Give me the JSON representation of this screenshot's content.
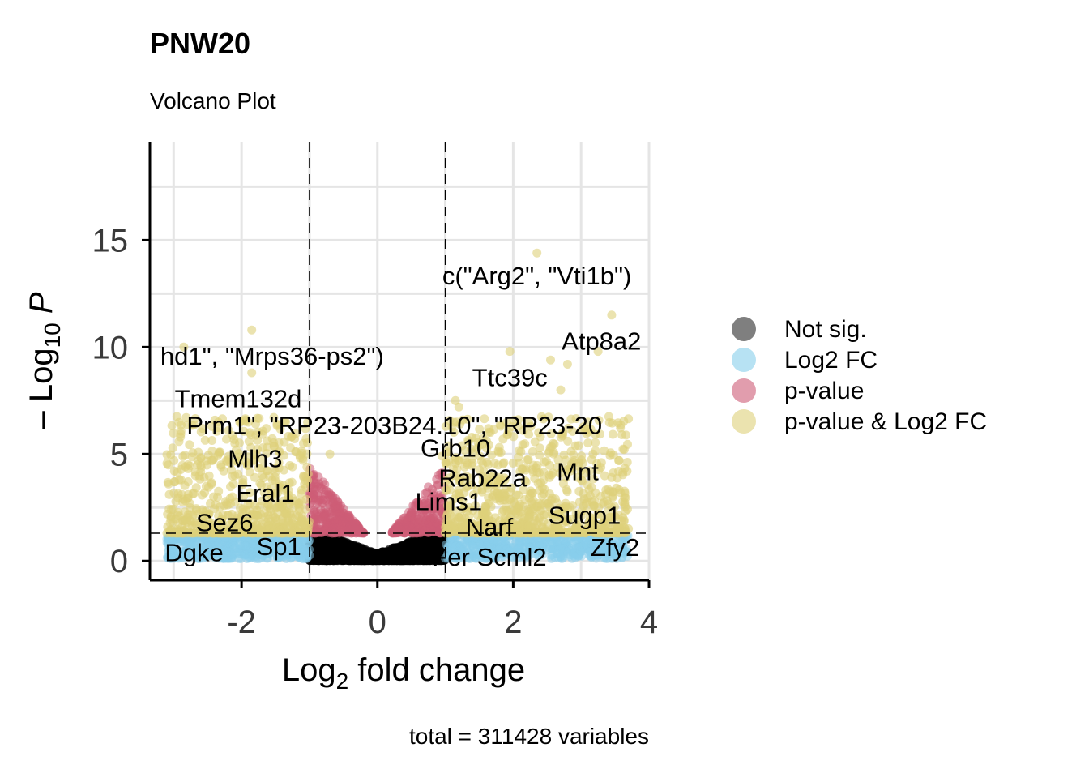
{
  "chart_data": {
    "type": "scatter",
    "title": "PNW20",
    "subtitle": "Volcano Plot",
    "xlabel": "Log2 fold change",
    "ylabel": "-Log10 P",
    "caption": "total = 311428 variables",
    "xlim": [
      -3.35,
      4.0
    ],
    "ylim": [
      -0.9,
      19.6
    ],
    "x_ticks": [
      -2,
      0,
      2,
      4
    ],
    "x_tick_labels": [
      "-2",
      "0",
      "2",
      "4"
    ],
    "y_ticks": [
      0,
      5,
      10,
      15
    ],
    "y_tick_labels": [
      "0",
      "5",
      "10",
      "15"
    ],
    "grid": true,
    "fc_cutoffs": [
      -1,
      1
    ],
    "p_cutoff": 1.3,
    "legend_position": "right",
    "colors": {
      "not_sig": "#000000",
      "log2fc": "#87CEEB",
      "pvalue": "#CD5C77",
      "both": "#DDD07A"
    },
    "series": [
      {
        "name": "Not sig.",
        "key": "not_sig"
      },
      {
        "name": "Log2 FC",
        "key": "log2fc"
      },
      {
        "name": "p-value",
        "key": "pvalue"
      },
      {
        "name": "p-value & Log2 FC",
        "key": "both"
      }
    ],
    "highlight_points": [
      {
        "x": 2.35,
        "y": 14.4
      },
      {
        "x": 3.45,
        "y": 11.5
      },
      {
        "x": -1.85,
        "y": 10.8
      },
      {
        "x": -2.85,
        "y": 10.0
      },
      {
        "x": 1.95,
        "y": 9.8
      },
      {
        "x": 2.55,
        "y": 9.4
      },
      {
        "x": 3.25,
        "y": 9.8
      },
      {
        "x": 2.8,
        "y": 9.2
      },
      {
        "x": -1.85,
        "y": 8.8
      },
      {
        "x": 2.7,
        "y": 8.0
      },
      {
        "x": -2.9,
        "y": 5.8
      },
      {
        "x": 3.6,
        "y": 5.9
      },
      {
        "x": 1.15,
        "y": 7.5
      },
      {
        "x": 1.2,
        "y": 7.2
      },
      {
        "x": -0.7,
        "y": 5.0
      },
      {
        "x": 0.95,
        "y": 4.9
      },
      {
        "x": -2.6,
        "y": 4.8
      },
      {
        "x": -2.1,
        "y": 5.5
      },
      {
        "x": -1.1,
        "y": 4.8
      },
      {
        "x": -2.65,
        "y": 4.5
      },
      {
        "x": -2.3,
        "y": 4.4
      },
      {
        "x": -2.55,
        "y": 3.9
      },
      {
        "x": -1.25,
        "y": 4.4
      },
      {
        "x": 2.9,
        "y": 4.7
      },
      {
        "x": 1.5,
        "y": 5.4
      },
      {
        "x": 3.3,
        "y": 4.6
      },
      {
        "x": 3.45,
        "y": 3.9
      },
      {
        "x": 1.8,
        "y": 3.9
      },
      {
        "x": -1.45,
        "y": 4.6
      },
      {
        "x": 2.15,
        "y": 6.1
      },
      {
        "x": 3.1,
        "y": 6.5
      }
    ],
    "annotations": [
      {
        "label": "c(\"Arg2\", \"Vti1b\")",
        "x": 2.35,
        "y": 13.35
      },
      {
        "label": "Atp8a2",
        "x": 3.3,
        "y": 10.3
      },
      {
        "label": "hd1\", \"Mrps36-ps2\")",
        "x": -1.55,
        "y": 9.6
      },
      {
        "label": "Ttc39c",
        "x": 1.95,
        "y": 8.6
      },
      {
        "label": "Tmem132d",
        "x": -2.05,
        "y": 7.6
      },
      {
        "label": "Prm1\", \"RP23-203B24.10\", \"RP23-20",
        "x": 0.25,
        "y": 6.35
      },
      {
        "label": "Grb10",
        "x": 1.15,
        "y": 5.3
      },
      {
        "label": "Mlh3",
        "x": -1.8,
        "y": 4.8
      },
      {
        "label": "Mnt",
        "x": 2.95,
        "y": 4.2
      },
      {
        "label": "Rab22a",
        "x": 1.55,
        "y": 3.9
      },
      {
        "label": "Eral1",
        "x": -1.65,
        "y": 3.2
      },
      {
        "label": "Lims1",
        "x": 1.05,
        "y": 2.8
      },
      {
        "label": "Sugp1",
        "x": 3.05,
        "y": 2.15
      },
      {
        "label": "Sez6",
        "x": -2.25,
        "y": 1.8
      },
      {
        "label": "Narf",
        "x": 1.65,
        "y": 1.6
      },
      {
        "label": "Sp1",
        "x": -1.45,
        "y": 0.7
      },
      {
        "label": "Zfy2",
        "x": 3.5,
        "y": 0.65
      },
      {
        "label": "Dgke",
        "x": -2.7,
        "y": 0.4
      },
      {
        "label": "Fer Scml2",
        "x": 1.65,
        "y": 0.2
      }
    ]
  }
}
